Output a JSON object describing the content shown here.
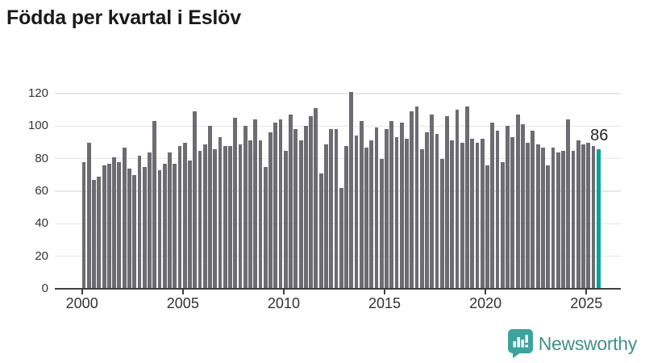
{
  "title": "Födda per kvartal i Eslöv",
  "annotation": {
    "label": "86"
  },
  "branding": {
    "name": "Newsworthy"
  },
  "colors": {
    "bar": "#6c6c72",
    "highlight": "#00a39c",
    "grid": "#e7e7e7",
    "axis": "#3f3f3f",
    "title": "#1a1a1a",
    "tick_label": "#333333",
    "annotation": "#222222",
    "brand_text": "#3f918d",
    "brand_icon": "#3ba49e"
  },
  "chart_data": {
    "type": "bar",
    "title": "Födda per kvartal i Eslöv",
    "x_start": "2000-Q1",
    "x_end": "2025-Q3",
    "x_frequency": "quarterly",
    "x_tick_labels": [
      "2000",
      "2005",
      "2010",
      "2015",
      "2020",
      "2025"
    ],
    "y_ticks": [
      0,
      20,
      40,
      60,
      80,
      100,
      120
    ],
    "ylim": [
      0,
      125
    ],
    "grid": true,
    "highlight_last": true,
    "last_value_label": "86",
    "values": [
      78,
      90,
      67,
      69,
      76,
      77,
      81,
      78,
      87,
      74,
      70,
      82,
      75,
      84,
      103,
      73,
      77,
      84,
      77,
      88,
      90,
      79,
      109,
      85,
      89,
      100,
      86,
      93,
      88,
      88,
      105,
      89,
      100,
      91,
      104,
      91,
      75,
      96,
      102,
      104,
      85,
      107,
      98,
      91,
      100,
      106,
      111,
      71,
      89,
      98,
      98,
      62,
      88,
      121,
      94,
      103,
      87,
      91,
      99,
      80,
      98,
      103,
      93,
      102,
      92,
      109,
      112,
      86,
      96,
      107,
      95,
      80,
      106,
      91,
      110,
      90,
      112,
      92,
      90,
      92,
      76,
      102,
      97,
      78,
      100,
      93,
      107,
      101,
      90,
      97,
      89,
      87,
      76,
      87,
      84,
      85,
      104,
      85,
      91,
      89,
      90,
      88,
      86
    ]
  }
}
